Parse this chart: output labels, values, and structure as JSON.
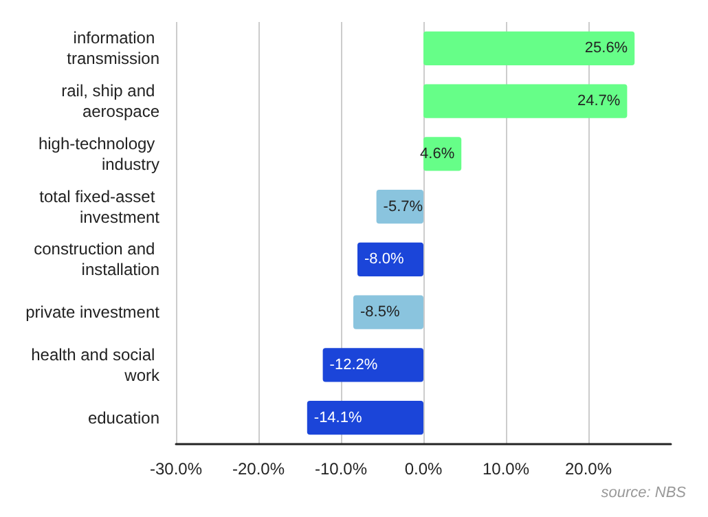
{
  "chart_data": {
    "type": "bar",
    "orientation": "horizontal",
    "categories": [
      "information transmission",
      "rail, ship and aerospace",
      "high-technology industry",
      "total fixed-asset investment",
      "construction and installation",
      "private investment",
      "health and social work",
      "education"
    ],
    "values": [
      25.6,
      24.7,
      4.6,
      -5.7,
      -8.0,
      -8.5,
      -12.2,
      -14.1
    ],
    "colors": [
      "#66fe88",
      "#66fe88",
      "#66fe88",
      "#8ac4de",
      "#1b45d9",
      "#8ac4de",
      "#1b45d9",
      "#1b45d9"
    ],
    "value_labels": [
      "25.6%",
      "24.7%",
      "4.6%",
      "-5.7%",
      "-8.0%",
      "-8.5%",
      "-12.2%",
      "-14.1%"
    ],
    "xlim": [
      -30,
      30
    ],
    "xticks": [
      {
        "value": -30,
        "label": "-30.0%"
      },
      {
        "value": -20,
        "label": "-20.0%"
      },
      {
        "value": -10,
        "label": "-10.0%"
      },
      {
        "value": 0,
        "label": "0.0%"
      },
      {
        "value": 10,
        "label": "10.0%"
      },
      {
        "value": 20,
        "label": "20.0%"
      }
    ],
    "grid": "x",
    "annotations": [
      "source: NBS"
    ]
  }
}
